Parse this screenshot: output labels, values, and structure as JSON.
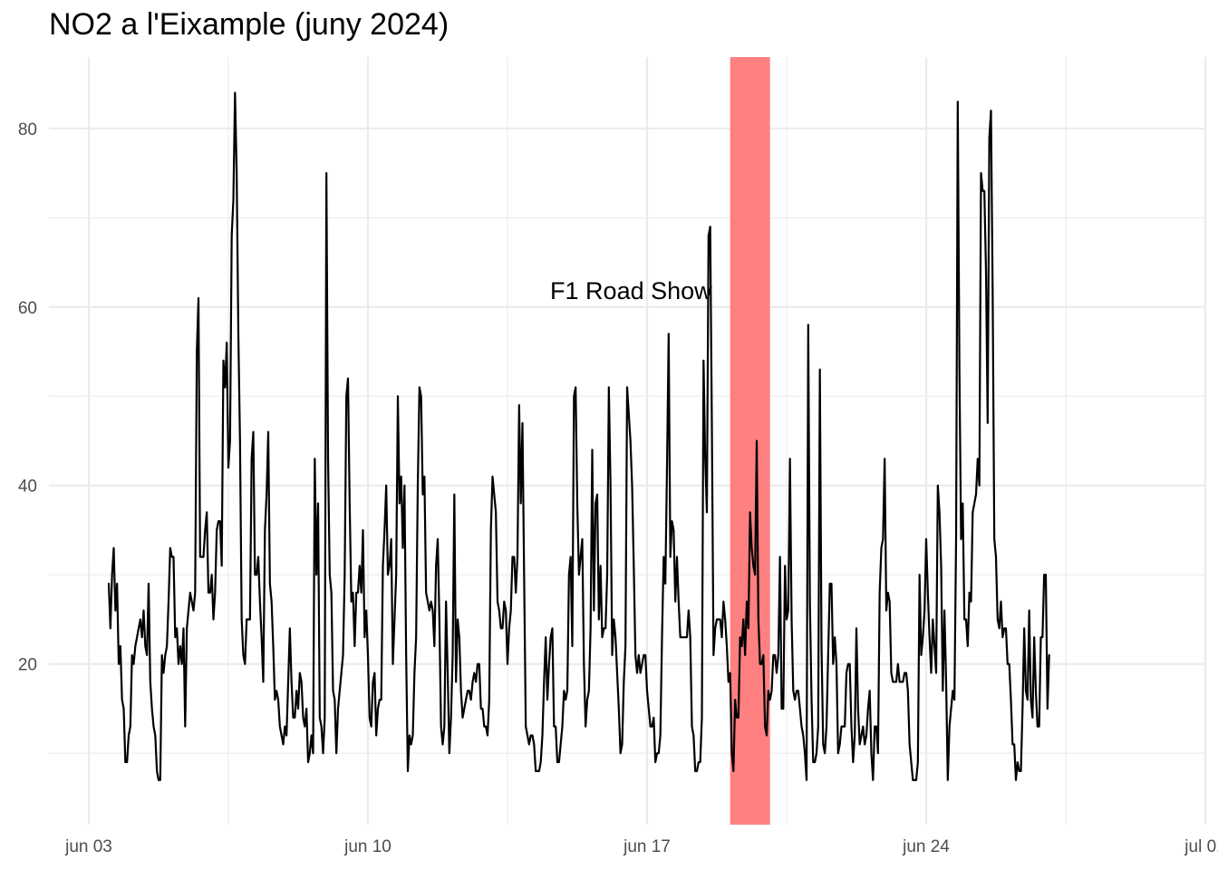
{
  "chart_data": {
    "type": "line",
    "title": "NO2 a l'Eixample (juny 2024)",
    "xlabel": "",
    "ylabel": "",
    "x_start": "2024-06-03T12:00",
    "x_step_hours": 1,
    "xlim": [
      "2024-06-02T00:00",
      "2024-07-01T00:00"
    ],
    "ylim": [
      2,
      88
    ],
    "x_ticks": [
      {
        "date": "2024-06-03",
        "label": "jun 03"
      },
      {
        "date": "2024-06-10",
        "label": "jun 10"
      },
      {
        "date": "2024-06-17",
        "label": "jun 17"
      },
      {
        "date": "2024-06-24",
        "label": "jun 24"
      },
      {
        "date": "2024-07-01",
        "label": "jul 01"
      }
    ],
    "y_ticks": [
      20,
      40,
      60,
      80
    ],
    "grid": true,
    "line_color": "#000000",
    "highlight": {
      "from": "2024-06-19T02:00",
      "to": "2024-06-20T02:00",
      "color": "#ff8080",
      "label": "F1 Road Show"
    },
    "series": [
      {
        "values": [
          29,
          24,
          30,
          33,
          26,
          29,
          20,
          22,
          16,
          15,
          9,
          9,
          12,
          13,
          21,
          20,
          22,
          23,
          24,
          25,
          23,
          26,
          22,
          21,
          29,
          18,
          15,
          13,
          12,
          8,
          7,
          7,
          21,
          19,
          21,
          22,
          27,
          33,
          32,
          32,
          23,
          24,
          20,
          22,
          20,
          24,
          13,
          24,
          26,
          28,
          27,
          26,
          28,
          55,
          61,
          32,
          32,
          32,
          35,
          37,
          28,
          28,
          30,
          25,
          28,
          35,
          36,
          36,
          31,
          54,
          51,
          56,
          42,
          45,
          68,
          72,
          84,
          75,
          57,
          45,
          25,
          21,
          20,
          25,
          25,
          25,
          43,
          46,
          30,
          30,
          32,
          27,
          23,
          18,
          35,
          39,
          46,
          29,
          27,
          22,
          16,
          17,
          16,
          13,
          12,
          11,
          13,
          12,
          18,
          24,
          18,
          14,
          14,
          17,
          15,
          19,
          18,
          14,
          13,
          15,
          9,
          10,
          12,
          10,
          43,
          30,
          38,
          14,
          13,
          10,
          14,
          75,
          43,
          30,
          28,
          17,
          16,
          10,
          15,
          17,
          19,
          21,
          30,
          50,
          52,
          38,
          27,
          28,
          22,
          28,
          28,
          31,
          28,
          35,
          23,
          26,
          21,
          14,
          13,
          18,
          19,
          12,
          15,
          16,
          16,
          31,
          35,
          40,
          30,
          31,
          34,
          20,
          25,
          30,
          50,
          38,
          41,
          33,
          40,
          21,
          8,
          12,
          11,
          12,
          19,
          23,
          40,
          51,
          50,
          39,
          41,
          28,
          27,
          26,
          27,
          26,
          22,
          31,
          34,
          25,
          13,
          11,
          13,
          27,
          19,
          10,
          14,
          21,
          39,
          18,
          25,
          23,
          17,
          14,
          15,
          16,
          17,
          17,
          16,
          18,
          19,
          18,
          20,
          20,
          15,
          15,
          13,
          13,
          12,
          16,
          35,
          41,
          39,
          37,
          27,
          26,
          24,
          24,
          27,
          26,
          20,
          24,
          26,
          32,
          32,
          28,
          32,
          49,
          38,
          47,
          30,
          13,
          12,
          11,
          12,
          12,
          11,
          8,
          8,
          8,
          9,
          12,
          18,
          23,
          16,
          20,
          23,
          24,
          13,
          13,
          9,
          9,
          11,
          13,
          17,
          16,
          17,
          30,
          32,
          22,
          50,
          51,
          38,
          30,
          32,
          34,
          20,
          13,
          16,
          17,
          24,
          44,
          26,
          38,
          39,
          25,
          31,
          23,
          24,
          24,
          30,
          51,
          40,
          21,
          25,
          23,
          19,
          15,
          10,
          11,
          18,
          22,
          51,
          48,
          45,
          40,
          31,
          21,
          19,
          21,
          19,
          20,
          21,
          21,
          17,
          15,
          13,
          13,
          14,
          9,
          10,
          10,
          12,
          23,
          32,
          29,
          42,
          57,
          32,
          36,
          35,
          27,
          32,
          27,
          23,
          23,
          23,
          23,
          23,
          26,
          23,
          13,
          12,
          8,
          8,
          9,
          9,
          14,
          54,
          43,
          37,
          68,
          69,
          47,
          21,
          24,
          25,
          25,
          25,
          23,
          27,
          25,
          22,
          18,
          19,
          10,
          8,
          16,
          14,
          14,
          23,
          22,
          25,
          21,
          27,
          24,
          37,
          33,
          31,
          30,
          45,
          25,
          20,
          20,
          21,
          13,
          12,
          17,
          16,
          17,
          21,
          21,
          19,
          21,
          32,
          15,
          15,
          31,
          25,
          26,
          43,
          25,
          17,
          16,
          17,
          17,
          15,
          13,
          12,
          10,
          7,
          58,
          27,
          16,
          9,
          9,
          10,
          13,
          53,
          22,
          11,
          10,
          13,
          21,
          29,
          29,
          20,
          23,
          20,
          10,
          11,
          13,
          13,
          13,
          19,
          20,
          20,
          13,
          9,
          12,
          24,
          15,
          11,
          12,
          13,
          11,
          12,
          15,
          17,
          10,
          7,
          13,
          13,
          10,
          28,
          33,
          34,
          43,
          26,
          28,
          27,
          19,
          18,
          18,
          18,
          20,
          18,
          18,
          18,
          19,
          19,
          17,
          11,
          9,
          7,
          7,
          7,
          9,
          30,
          21,
          23,
          26,
          34,
          28,
          23,
          19,
          25,
          22,
          19,
          40,
          37,
          31,
          17,
          26,
          18,
          7,
          13,
          15,
          17,
          16,
          34,
          83,
          53,
          34,
          38,
          25,
          25,
          22,
          28,
          27,
          37,
          38,
          39,
          43,
          40,
          75,
          73,
          73,
          64,
          47,
          79,
          82,
          62,
          34,
          32,
          25,
          24,
          27,
          23,
          24,
          24,
          20,
          20,
          16,
          11,
          11,
          7,
          9,
          8,
          8,
          15,
          24,
          17,
          16,
          26,
          16,
          14,
          23,
          17,
          13,
          13,
          23,
          23,
          30,
          30,
          15,
          21
        ]
      }
    ]
  }
}
